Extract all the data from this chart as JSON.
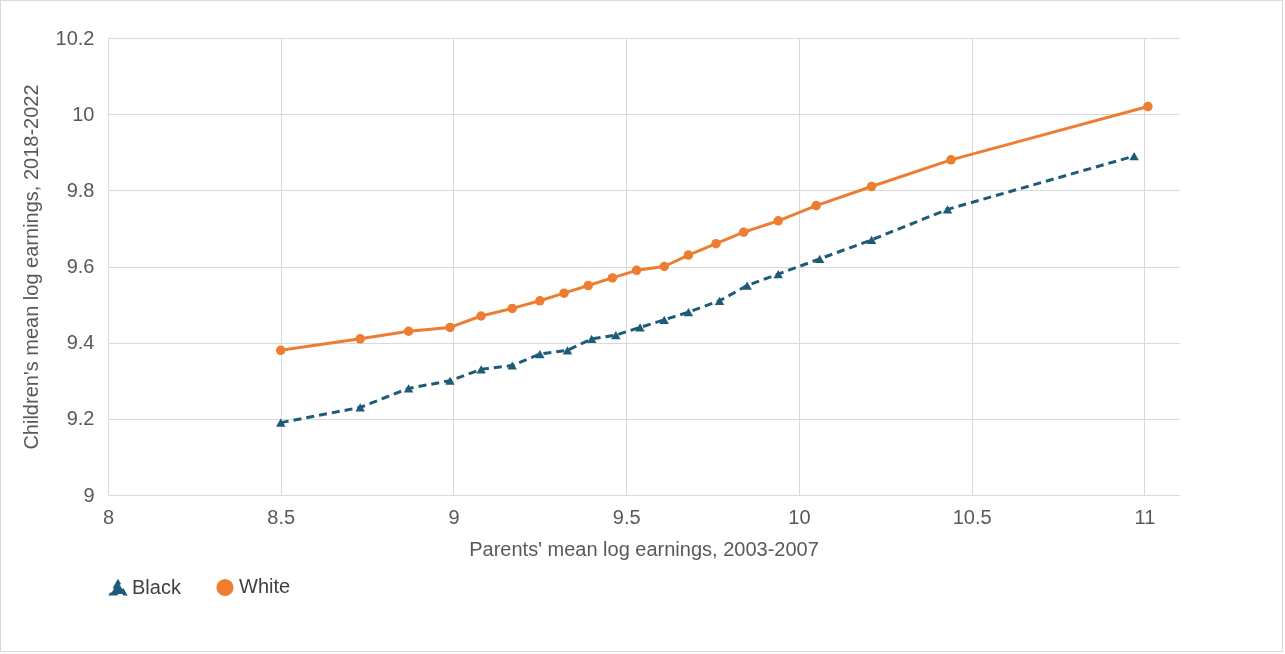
{
  "chart_data": {
    "type": "line",
    "xlabel": "Parents' mean log earnings, 2003-2007",
    "ylabel": "Children's mean log earnings, 2018-2022",
    "xlim": [
      8,
      11.1
    ],
    "xticks": [
      8,
      8.5,
      9,
      9.5,
      10,
      10.5,
      11
    ],
    "ylim": [
      9,
      10.2
    ],
    "yticks": [
      9,
      9.2,
      9.4,
      9.6,
      9.8,
      10,
      10.2
    ],
    "grid": true,
    "legend": "bottom",
    "series": [
      {
        "name": "Black",
        "color": "#1d5b79",
        "line_style": "dashed",
        "marker": "triangle",
        "x": [
          8.5,
          8.73,
          8.87,
          8.99,
          9.08,
          9.17,
          9.25,
          9.33,
          9.4,
          9.47,
          9.54,
          9.61,
          9.68,
          9.77,
          9.85,
          9.94,
          10.06,
          10.21,
          10.43,
          10.97
        ],
        "values": [
          9.19,
          9.23,
          9.28,
          9.3,
          9.33,
          9.34,
          9.37,
          9.38,
          9.41,
          9.42,
          9.44,
          9.46,
          9.48,
          9.51,
          9.55,
          9.58,
          9.62,
          9.67,
          9.75,
          9.89
        ]
      },
      {
        "name": "White",
        "color": "#ed7d31",
        "line_style": "solid",
        "marker": "circle",
        "x": [
          8.5,
          8.73,
          8.87,
          8.99,
          9.08,
          9.17,
          9.25,
          9.32,
          9.39,
          9.46,
          9.53,
          9.61,
          9.68,
          9.76,
          9.84,
          9.94,
          10.05,
          10.21,
          10.44,
          11.01
        ],
        "values": [
          9.38,
          9.41,
          9.43,
          9.44,
          9.47,
          9.49,
          9.51,
          9.53,
          9.55,
          9.57,
          9.59,
          9.6,
          9.63,
          9.66,
          9.69,
          9.72,
          9.76,
          9.81,
          9.88,
          10.02
        ]
      }
    ]
  }
}
